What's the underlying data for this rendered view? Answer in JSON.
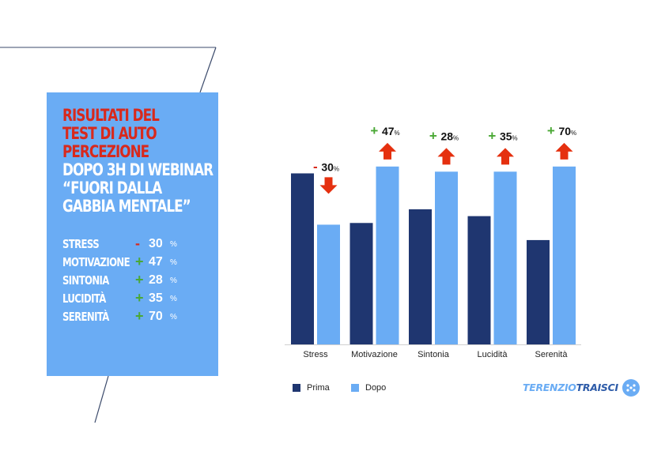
{
  "panel": {
    "title_red": [
      "RISULTATI DEL",
      "TEST DI AUTO",
      "PERCEZIONE"
    ],
    "title_white": [
      "DOPO 3H DI WEBINAR",
      "“FUORI DALLA",
      "GABBIA MENTALE”"
    ],
    "stats": [
      {
        "label": "STRESS",
        "sign": "-",
        "value": "30",
        "unit": "%"
      },
      {
        "label": "MOTIVAZIONE",
        "sign": "+",
        "value": "47",
        "unit": "%"
      },
      {
        "label": "SINTONIA",
        "sign": "+",
        "value": "28",
        "unit": "%"
      },
      {
        "label": "LUCIDITÀ",
        "sign": "+",
        "value": "35",
        "unit": "%"
      },
      {
        "label": "SERENITÀ",
        "sign": "+",
        "value": "70",
        "unit": "%"
      }
    ]
  },
  "colors": {
    "prima": "#1f3670",
    "dopo": "#6aacf4",
    "panel": "#6aacf4",
    "red": "#d8291c",
    "green": "#4aa835",
    "arrow": "#e5300f"
  },
  "chart_data": {
    "type": "bar",
    "categories": [
      "Stress",
      "Motivazione",
      "Sintonia",
      "Lucidità",
      "Serenità"
    ],
    "series": [
      {
        "name": "Prima",
        "values": [
          100,
          71,
          79,
          75,
          61
        ]
      },
      {
        "name": "Dopo",
        "values": [
          70,
          104,
          101,
          101,
          104
        ]
      }
    ],
    "ylim": [
      0,
      115
    ],
    "grid": false,
    "legend": "bottom-left",
    "changes": [
      {
        "sign": "-",
        "value": "30",
        "unit": "%",
        "direction": "down"
      },
      {
        "sign": "+",
        "value": "47",
        "unit": "%",
        "direction": "up"
      },
      {
        "sign": "+",
        "value": "28",
        "unit": "%",
        "direction": "up"
      },
      {
        "sign": "+",
        "value": "35",
        "unit": "%",
        "direction": "up"
      },
      {
        "sign": "+",
        "value": "70",
        "unit": "%",
        "direction": "up"
      }
    ]
  },
  "brand": {
    "part1": "TERENZIO",
    "part2": "TRAISCI"
  }
}
